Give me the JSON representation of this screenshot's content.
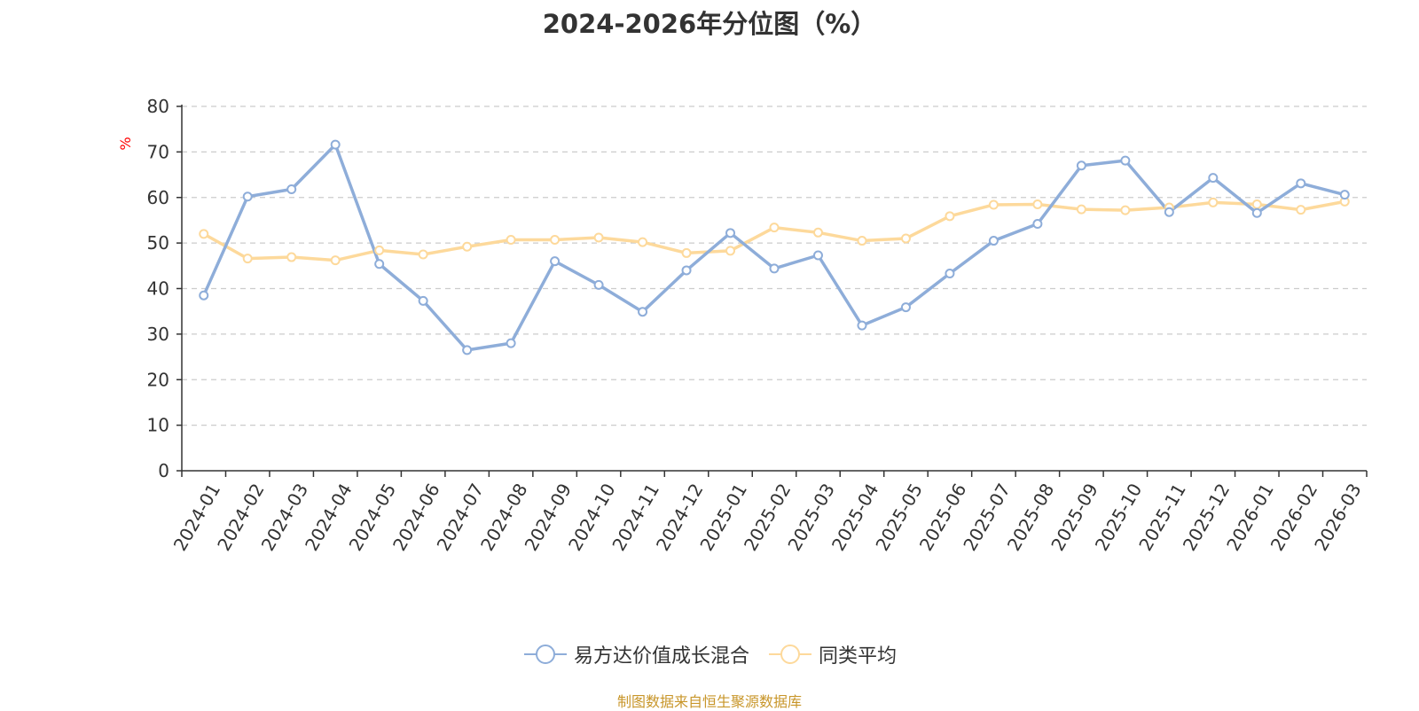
{
  "page": {
    "title": "2024-2026年分位图（%）",
    "source": "制图数据来自恒生聚源数据库"
  },
  "chart_data": {
    "type": "line",
    "title": "2024-2026年分位图（%）",
    "ylabel": "%",
    "xlabel": "",
    "ylim": [
      0,
      80
    ],
    "yticks": [
      0,
      10,
      20,
      30,
      40,
      50,
      60,
      70,
      80
    ],
    "grid": true,
    "legend_position": "bottom",
    "categories": [
      "2024-01",
      "2024-02",
      "2024-03",
      "2024-04",
      "2024-05",
      "2024-06",
      "2024-07",
      "2024-08",
      "2024-09",
      "2024-10",
      "2024-11",
      "2024-12",
      "2025-01",
      "2025-02",
      "2025-03",
      "2025-04",
      "2025-05",
      "2025-06",
      "2025-07",
      "2025-08",
      "2025-09",
      "2025-10",
      "2025-11",
      "2025-12",
      "2026-01",
      "2026-02",
      "2026-03"
    ],
    "series": [
      {
        "name": "易方达价值成长混合",
        "color": "#8eadd9",
        "values": [
          38.5,
          60.2,
          61.8,
          71.6,
          45.4,
          37.3,
          26.5,
          28.0,
          46.0,
          40.8,
          34.9,
          44.0,
          52.2,
          44.4,
          47.3,
          31.9,
          35.9,
          43.3,
          50.5,
          54.2,
          67.0,
          68.1,
          56.8,
          64.3,
          56.6,
          63.1,
          60.6
        ]
      },
      {
        "name": "同类平均",
        "color": "#fdd99b",
        "values": [
          52.0,
          46.6,
          46.9,
          46.2,
          48.4,
          47.5,
          49.2,
          50.7,
          50.7,
          51.2,
          50.2,
          47.8,
          48.3,
          53.4,
          52.3,
          50.5,
          51.0,
          55.9,
          58.4,
          58.5,
          57.4,
          57.2,
          57.8,
          58.9,
          58.5,
          57.3,
          59.1
        ]
      }
    ]
  }
}
